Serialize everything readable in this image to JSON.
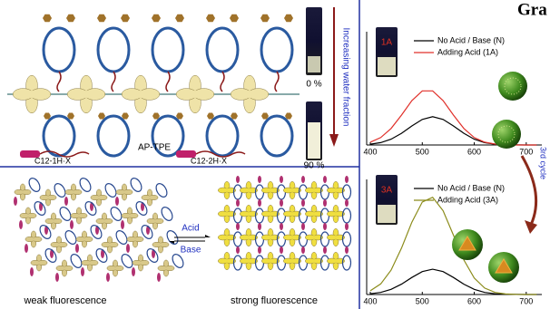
{
  "header": {
    "title": "Gra"
  },
  "left": {
    "molecule_label": "AP-TPE",
    "monomer_1": "C12-1H·X",
    "monomer_2": "C12-2H·X",
    "vial_low": "0 %",
    "vial_high": "90 %",
    "arrow_label": "Increasing water fraction",
    "acid": "Acid",
    "base": "Base",
    "weak": "weak fluorescence",
    "strong": "strong fluorescence",
    "cycle": "3rd cycle"
  },
  "chart_data": [
    {
      "type": "line",
      "inset_label": "1A",
      "x": [
        400,
        420,
        440,
        460,
        480,
        500,
        520,
        540,
        560,
        580,
        600,
        620,
        640,
        660,
        680,
        700,
        720
      ],
      "xlim": [
        400,
        730
      ],
      "xticks": [
        400,
        500,
        600,
        700
      ],
      "ylim": [
        0,
        100
      ],
      "series": [
        {
          "name": "No Acid / Base (N)",
          "color": "#000000",
          "values": [
            0.7,
            2.1,
            5.1,
            10.3,
            16.8,
            22.6,
            25,
            22.6,
            16.8,
            10.3,
            5.1,
            2.1,
            0.7,
            0.2,
            0.1,
            0,
            0
          ]
        },
        {
          "name": "Adding Acid (1A)",
          "color": "#e0302a",
          "values": [
            2.5,
            6.6,
            14.6,
            26.4,
            39.2,
            47.8,
            47.8,
            39.2,
            26.4,
            14.6,
            6.6,
            2.5,
            0.8,
            0.2,
            0,
            0,
            0
          ]
        }
      ]
    },
    {
      "type": "line",
      "inset_label": "3A",
      "x": [
        400,
        420,
        440,
        460,
        480,
        500,
        520,
        540,
        560,
        580,
        600,
        620,
        640,
        660,
        680,
        700,
        720
      ],
      "xlim": [
        400,
        730
      ],
      "xticks": [
        400,
        500,
        600,
        700
      ],
      "ylim": [
        0,
        100
      ],
      "series": [
        {
          "name": "No Acid / Base (N)",
          "color": "#000000",
          "values": [
            0.6,
            1.8,
            4.5,
            9,
            14.8,
            19.9,
            22,
            19.9,
            14.8,
            9,
            4.5,
            1.8,
            0.6,
            0.2,
            0.1,
            0,
            0
          ]
        },
        {
          "name": "Adding Acid (3A)",
          "color": "#8b8b1a",
          "values": [
            3.2,
            9.2,
            21.2,
            40.3,
            62.8,
            80.4,
            84.5,
            72.8,
            51.6,
            30,
            14.3,
            5.6,
            1.8,
            0.5,
            0.1,
            0,
            0
          ]
        }
      ]
    }
  ]
}
